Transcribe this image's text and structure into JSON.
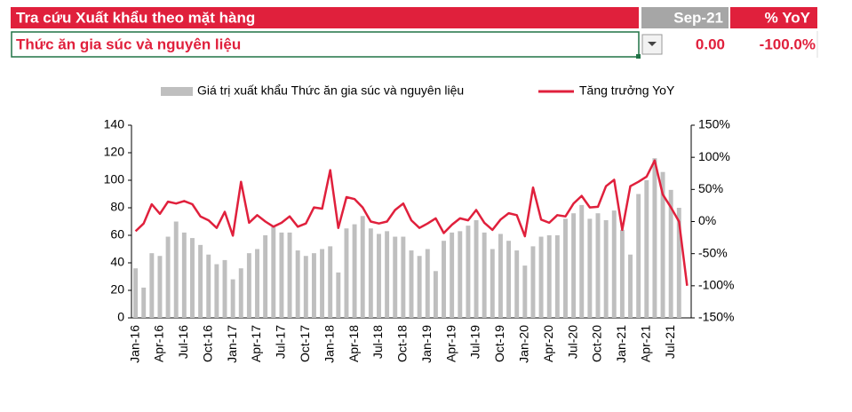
{
  "header": {
    "title": "Tra cứu Xuất khẩu theo mặt hàng",
    "period": "Sep-21",
    "yoy_label": "% YoY"
  },
  "selection": {
    "item": "Thức ăn gia súc và nguyên liệu",
    "value": "0.00",
    "yoy": "-100.0%"
  },
  "chart_data": {
    "type": "bar",
    "categories": [
      "Jan-16",
      null,
      null,
      "Apr-16",
      null,
      null,
      "Jul-16",
      null,
      null,
      "Oct-16",
      null,
      null,
      "Jan-17",
      null,
      null,
      "Apr-17",
      null,
      null,
      "Jul-17",
      null,
      null,
      "Oct-17",
      null,
      null,
      "Jan-18",
      null,
      null,
      "Apr-18",
      null,
      null,
      "Jul-18",
      null,
      null,
      "Oct-18",
      null,
      null,
      "Jan-19",
      null,
      null,
      "Apr-19",
      null,
      null,
      "Jul-19",
      null,
      null,
      "Oct-19",
      null,
      null,
      "Jan-20",
      null,
      null,
      "Apr-20",
      null,
      null,
      "Jul-20",
      null,
      null,
      "Oct-20",
      null,
      null,
      "Jan-21",
      null,
      null,
      "Apr-21",
      null,
      null,
      "Jul-21",
      null,
      null
    ],
    "series": [
      {
        "name": "Giá trị xuất khẩu Thức ăn gia súc và nguyên liệu",
        "type": "bar",
        "color": "#bfbfbf",
        "values": [
          36,
          22,
          47,
          45,
          59,
          70,
          62,
          58,
          53,
          46,
          39,
          42,
          28,
          36,
          47,
          50,
          60,
          66,
          62,
          62,
          49,
          45,
          47,
          50,
          52,
          33,
          65,
          68,
          74,
          65,
          61,
          63,
          59,
          59,
          49,
          45,
          50,
          34,
          56,
          62,
          63,
          67,
          71,
          62,
          50,
          61,
          56,
          49,
          38,
          52,
          59,
          60,
          60,
          72,
          76,
          82,
          72,
          76,
          71,
          78,
          64,
          46,
          90,
          100,
          116,
          106,
          93,
          80,
          0
        ]
      },
      {
        "name": "Tăng trưởng YoY",
        "type": "line",
        "color": "#e0203c",
        "axis": "y2",
        "values": [
          -15,
          -3,
          27,
          12,
          31,
          28,
          32,
          27,
          8,
          2,
          -10,
          15,
          -22,
          62,
          -2,
          10,
          0,
          -8,
          -2,
          8,
          -8,
          -3,
          22,
          20,
          80,
          -10,
          38,
          35,
          22,
          0,
          -3,
          0,
          18,
          28,
          2,
          -10,
          -3,
          5,
          -18,
          -5,
          5,
          2,
          18,
          -2,
          -13,
          3,
          13,
          10,
          -23,
          53,
          3,
          -2,
          10,
          8,
          28,
          40,
          22,
          23,
          55,
          65,
          -13,
          55,
          62,
          70,
          95,
          42,
          22,
          0,
          -100
        ]
      }
    ],
    "ylim": [
      0,
      140
    ],
    "yticks": [
      0,
      20,
      40,
      60,
      80,
      100,
      120,
      140
    ],
    "y2lim": [
      -150,
      150
    ],
    "y2ticks": [
      {
        "value": -150,
        "label": "-150%"
      },
      {
        "value": -100,
        "label": "-100%"
      },
      {
        "value": -50,
        "label": "-50%"
      },
      {
        "value": 0,
        "label": "0%"
      },
      {
        "value": 50,
        "label": "50%"
      },
      {
        "value": 100,
        "label": "100%"
      },
      {
        "value": 150,
        "label": "150%"
      }
    ],
    "legend": "top"
  }
}
